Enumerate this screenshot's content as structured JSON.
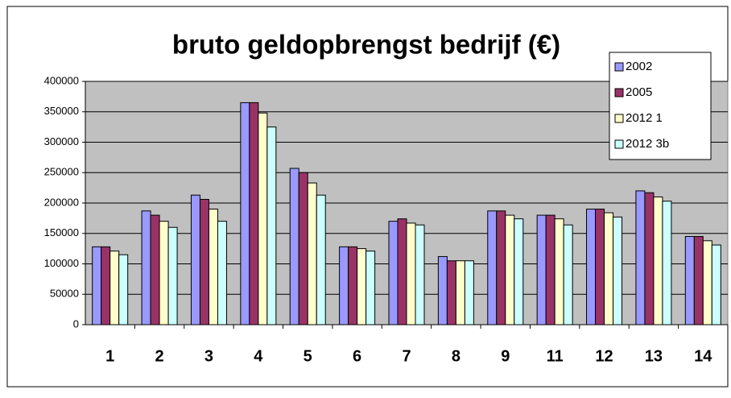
{
  "chart_data": {
    "type": "bar",
    "title": "bruto geldopbrengst bedrijf (€)",
    "categories": [
      "1",
      "2",
      "3",
      "4",
      "5",
      "6",
      "7",
      "8",
      "9",
      "11",
      "12",
      "13",
      "14"
    ],
    "series": [
      {
        "name": "2002",
        "color": "#9999ff",
        "values": [
          128000,
          187000,
          213000,
          365000,
          257000,
          128000,
          170000,
          112000,
          187000,
          180000,
          190000,
          220000,
          145000
        ]
      },
      {
        "name": "2005",
        "color": "#993366",
        "values": [
          128000,
          180000,
          206000,
          365000,
          250000,
          128000,
          174000,
          105000,
          187000,
          180000,
          190000,
          217000,
          145000
        ]
      },
      {
        "name": "2012 1",
        "color": "#ffffcc",
        "values": [
          121000,
          170000,
          190000,
          348000,
          233000,
          125000,
          167000,
          105000,
          180000,
          174000,
          184000,
          210000,
          138000
        ]
      },
      {
        "name": "2012 3b",
        "color": "#ccffff",
        "values": [
          115000,
          160000,
          170000,
          325000,
          213000,
          121000,
          164000,
          105000,
          174000,
          164000,
          177000,
          203000,
          131000
        ]
      }
    ],
    "ylim": [
      0,
      400000
    ],
    "yticks": [
      0,
      50000,
      100000,
      150000,
      200000,
      250000,
      300000,
      350000,
      400000
    ],
    "grid": true,
    "legend": "top-right"
  }
}
